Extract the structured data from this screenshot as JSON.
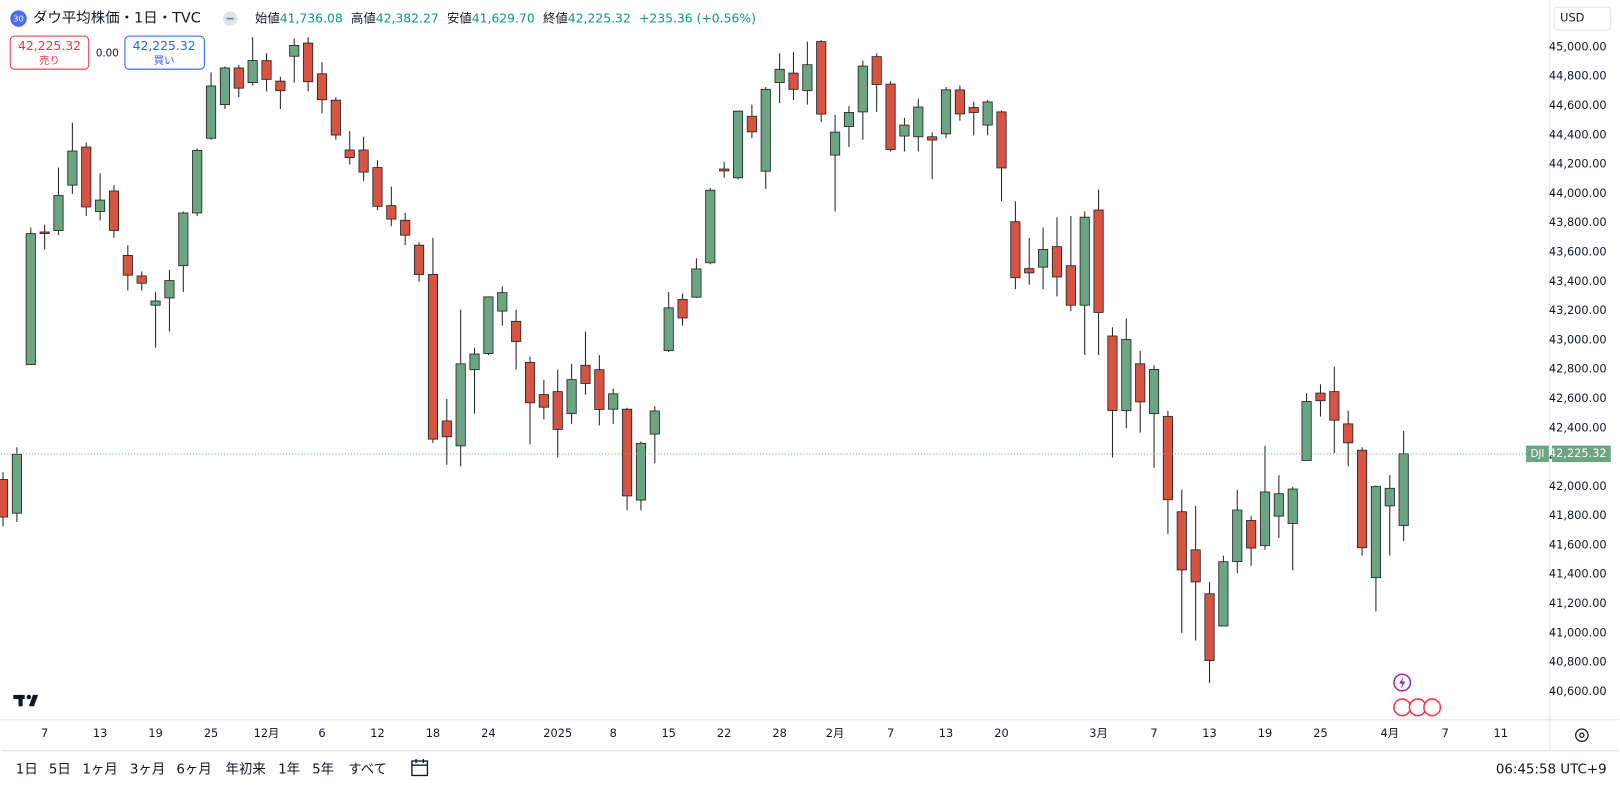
{
  "header": {
    "badge": "30",
    "title": "ダウ平均株価・1日・TVC",
    "ohlc": [
      {
        "label": "始値",
        "value": "41,736.08"
      },
      {
        "label": "高値",
        "value": "42,382.27"
      },
      {
        "label": "安値",
        "value": "41,629.70"
      },
      {
        "label": "終値",
        "value": "42,225.32"
      }
    ],
    "change": "+235.36 (+0.56%)"
  },
  "trade": {
    "sell_price": "42,225.32",
    "sell_label": "売り",
    "spread": "0.00",
    "buy_price": "42,225.32",
    "buy_label": "買い"
  },
  "currency": "USD",
  "chart_data": {
    "type": "candlestick",
    "categories": [
      null,
      null,
      null,
      "7",
      null,
      null,
      null,
      "13",
      null,
      null,
      null,
      "19",
      null,
      null,
      null,
      "25",
      null,
      null,
      null,
      "12月",
      null,
      null,
      null,
      "6",
      null,
      null,
      null,
      "12",
      null,
      null,
      null,
      "18",
      null,
      null,
      null,
      "24",
      null,
      null,
      null,
      null,
      "2025",
      null,
      null,
      null,
      "8",
      null,
      null,
      null,
      "15",
      null,
      null,
      null,
      "22",
      null,
      null,
      null,
      "28",
      null,
      null,
      null,
      "2月",
      null,
      null,
      null,
      "7",
      null,
      null,
      null,
      "13",
      null,
      null,
      null,
      "20",
      null,
      null,
      null,
      null,
      null,
      null,
      "3月",
      null,
      null,
      null,
      "7",
      null,
      null,
      null,
      "13",
      null,
      null,
      null,
      "19",
      null,
      null,
      null,
      "25",
      null,
      null,
      null,
      null,
      "4月",
      null
    ],
    "future_labels": [
      "7",
      "11"
    ],
    "open": [
      42050,
      41820,
      42835,
      43740,
      43750,
      44060,
      44320,
      43880,
      44020,
      43580,
      43440,
      43240,
      43290,
      43510,
      43870,
      44380,
      44610,
      44860,
      44760,
      44910,
      44770,
      44940,
      45030,
      44820,
      44640,
      44300,
      44300,
      44180,
      43920,
      43820,
      43650,
      43450,
      42450,
      42280,
      42800,
      42910,
      43200,
      43130,
      42850,
      42630,
      42650,
      42500,
      42830,
      42800,
      42530,
      42530,
      41910,
      42360,
      42930,
      43280,
      43295,
      43530,
      44170,
      44110,
      44530,
      44155,
      44760,
      44825,
      44705,
      45040,
      44265,
      44460,
      44560,
      44937,
      44750,
      44395,
      44390,
      44390,
      44410,
      44710,
      44590,
      44470,
      44560,
      43810,
      43490,
      43500,
      43640,
      43510,
      43240,
      43890,
      43030,
      42520,
      42840,
      42500,
      42480,
      41830,
      41570,
      41270,
      41050,
      41490,
      41770,
      41600,
      41800,
      41750,
      42180,
      42640,
      42650,
      42430,
      42250,
      41380,
      41870,
      41736.08
    ],
    "high": [
      42100,
      42270,
      43770,
      43790,
      44180,
      44486,
      44350,
      44140,
      44060,
      43650,
      43470,
      43330,
      43480,
      43880,
      44310,
      44830,
      44870,
      44880,
      45070,
      44960,
      44800,
      45060,
      45070,
      44900,
      44660,
      44430,
      44390,
      44230,
      44050,
      43870,
      43670,
      43700,
      42600,
      43210,
      42950,
      43300,
      43370,
      43210,
      42890,
      42730,
      42800,
      42840,
      43060,
      42900,
      42670,
      42540,
      42310,
      42550,
      43330,
      43320,
      43560,
      44040,
      44220,
      44570,
      44610,
      44730,
      44960,
      44970,
      45040,
      45050,
      44540,
      44600,
      44910,
      44960,
      44770,
      44520,
      44650,
      44420,
      44730,
      44740,
      44630,
      44640,
      44570,
      43950,
      43700,
      43770,
      43840,
      43850,
      43880,
      44030,
      43090,
      43150,
      42930,
      42830,
      42520,
      41980,
      41870,
      41350,
      41530,
      41980,
      41800,
      42280,
      42080,
      42000,
      42640,
      42700,
      42820,
      42520,
      42270,
      42010,
      42080,
      42382.27
    ],
    "low": [
      41730,
      41760,
      42835,
      43620,
      43720,
      44000,
      43850,
      43820,
      43700,
      43340,
      43340,
      42950,
      43060,
      43330,
      43850,
      44370,
      44580,
      44660,
      44740,
      44700,
      44580,
      44760,
      44700,
      44550,
      44370,
      44200,
      44090,
      43890,
      43780,
      43650,
      43400,
      42300,
      42150,
      42140,
      42500,
      42900,
      43100,
      42800,
      42290,
      42460,
      42200,
      42430,
      42630,
      42420,
      42430,
      41840,
      41840,
      42160,
      42920,
      43100,
      43290,
      43520,
      44110,
      44100,
      44380,
      44035,
      44620,
      44640,
      44610,
      44490,
      43880,
      44320,
      44370,
      44560,
      44290,
      44290,
      44290,
      44100,
      44380,
      44500,
      44400,
      44400,
      43950,
      43350,
      43380,
      43350,
      43300,
      43200,
      42900,
      42900,
      42200,
      42400,
      42370,
      42130,
      41680,
      41000,
      40950,
      40660,
      41050,
      41410,
      41460,
      41570,
      41650,
      41430,
      42180,
      42480,
      42230,
      42140,
      41530,
      41150,
      41530,
      41629.7
    ],
    "close": [
      41794,
      42222,
      43729,
      43729,
      43989,
      44293,
      43911,
      43958,
      43751,
      43445,
      43390,
      43269,
      43408,
      43870,
      44297,
      44737,
      44860,
      44722,
      44911,
      44782,
      44705,
      45014,
      44766,
      44643,
      44402,
      44248,
      44149,
      43915,
      43828,
      43718,
      43450,
      42326,
      42342,
      42840,
      42907,
      43297,
      43326,
      42992,
      42574,
      42544,
      42392,
      42732,
      42706,
      42528,
      42635,
      41938,
      42297,
      42518,
      43222,
      43153,
      43488,
      44025,
      44157,
      44565,
      44424,
      44714,
      44851,
      44714,
      44882,
      44545,
      44422,
      44556,
      44873,
      44747,
      44303,
      44470,
      44593,
      44368,
      44711,
      44546,
      44556,
      44628,
      44177,
      43428,
      43461,
      43621,
      43433,
      43240,
      43841,
      43191,
      42521,
      43007,
      42580,
      42802,
      41912,
      41433,
      41351,
      40814,
      41489,
      41842,
      41582,
      41965,
      41953,
      41985,
      42583,
      42588,
      42455,
      42300,
      41584,
      42002,
      41990,
      42225.32
    ],
    "up_color": "#6ba583",
    "down_color": "#d75442",
    "border_color": "#222222",
    "last_price": {
      "symbol": "DJI",
      "label": "42,225.32",
      "color": "#6ba583"
    },
    "ylim": [
      40410,
      45324
    ],
    "yticks": [
      {
        "value": 40600,
        "label": "40,600.00"
      },
      {
        "value": 40800,
        "label": "40,800.00"
      },
      {
        "value": 41000,
        "label": "41,000.00"
      },
      {
        "value": 41200,
        "label": "41,200.00"
      },
      {
        "value": 41400,
        "label": "41,400.00"
      },
      {
        "value": 41600,
        "label": "41,600.00"
      },
      {
        "value": 41800,
        "label": "41,800.00"
      },
      {
        "value": 42000,
        "label": "42,000.00"
      },
      {
        "value": 42200,
        "label": "42,200.00"
      },
      {
        "value": 42400,
        "label": "42,400.00"
      },
      {
        "value": 42600,
        "label": "42,600.00"
      },
      {
        "value": 42800,
        "label": "42,800.00"
      },
      {
        "value": 43000,
        "label": "43,000.00"
      },
      {
        "value": 43200,
        "label": "43,200.00"
      },
      {
        "value": 43400,
        "label": "43,400.00"
      },
      {
        "value": 43600,
        "label": "43,600.00"
      },
      {
        "value": 43800,
        "label": "43,800.00"
      },
      {
        "value": 44000,
        "label": "44,000.00"
      },
      {
        "value": 44200,
        "label": "44,200.00"
      },
      {
        "value": 44400,
        "label": "44,400.00"
      },
      {
        "value": 44600,
        "label": "44,600.00"
      },
      {
        "value": 44800,
        "label": "44,800.00"
      },
      {
        "value": 45000,
        "label": "45,000.00"
      }
    ]
  },
  "toolbar": {
    "ranges": [
      "1日",
      "5日",
      "1ヶ月",
      "3ヶ月",
      "6ヶ月",
      "年初来",
      "1年",
      "5年",
      "すべて"
    ],
    "clock": "06:45:58 UTC+9"
  }
}
